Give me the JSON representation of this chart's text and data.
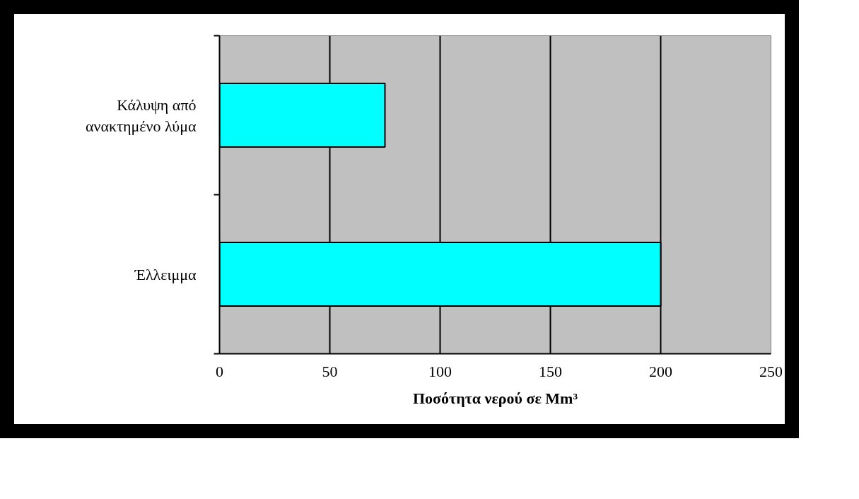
{
  "chart_data": {
    "type": "bar",
    "orientation": "horizontal",
    "categories": [
      "Κάλυψη από ανακτημένο λύμα",
      "Έλλειμμα"
    ],
    "values": [
      75,
      200
    ],
    "color": "#00ffff",
    "xlabel": "Ποσότητα νερού σε Mm³",
    "xlim": [
      0,
      250
    ],
    "xticks": [
      0,
      50,
      100,
      150,
      200,
      250
    ],
    "grid": "x"
  }
}
